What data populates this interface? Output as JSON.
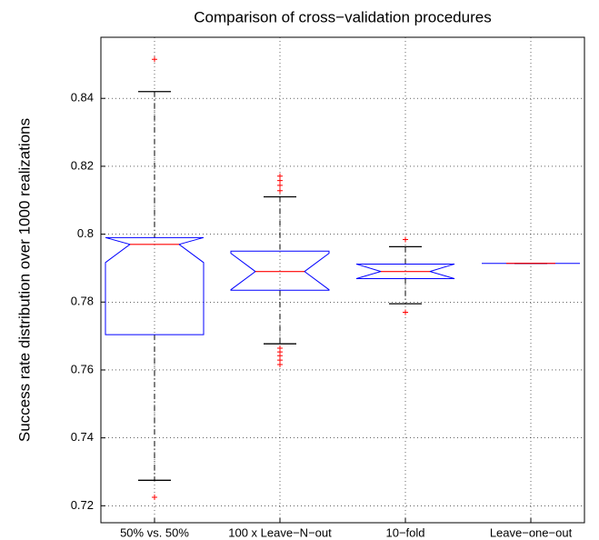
{
  "chart_data": {
    "type": "box",
    "title": "Comparison of cross−validation procedures",
    "y_label": "Success rate distribution over 1000 realizations",
    "categories": [
      "50% vs. 50%",
      "100 x Leave−N−out",
      "10−fold",
      "Leave−one−out"
    ],
    "boxes": [
      {
        "min": 0.7275,
        "q1": 0.7704,
        "median": 0.797,
        "q3": 0.799,
        "max": 0.842,
        "outliers": [
          0.8515,
          0.7225
        ]
      },
      {
        "min": 0.7677,
        "q1": 0.7835,
        "median": 0.789,
        "q3": 0.795,
        "max": 0.811,
        "outliers": [
          0.8171,
          0.8158,
          0.8144,
          0.8128,
          0.7664,
          0.7653,
          0.7642,
          0.7629,
          0.7616
        ]
      },
      {
        "min": 0.7795,
        "q1": 0.7869,
        "median": 0.789,
        "q3": 0.7912,
        "max": 0.7963,
        "outliers": [
          0.7984,
          0.777
        ]
      },
      {
        "min": 0.7914,
        "q1": 0.7914,
        "median": 0.7914,
        "q3": 0.7914,
        "max": 0.7914,
        "outliers": []
      }
    ],
    "ylim": [
      0.715,
      0.858
    ],
    "yticks": [
      0.72,
      0.74,
      0.76,
      0.78,
      {
        "value": 0.8,
        "label": "0.8"
      },
      0.82,
      0.84
    ],
    "grid": true,
    "notch": true,
    "box_color": "#0000ff",
    "median_color": "#ff0000",
    "whisker_color": "#000000",
    "outlier_color": "#ff0000"
  }
}
